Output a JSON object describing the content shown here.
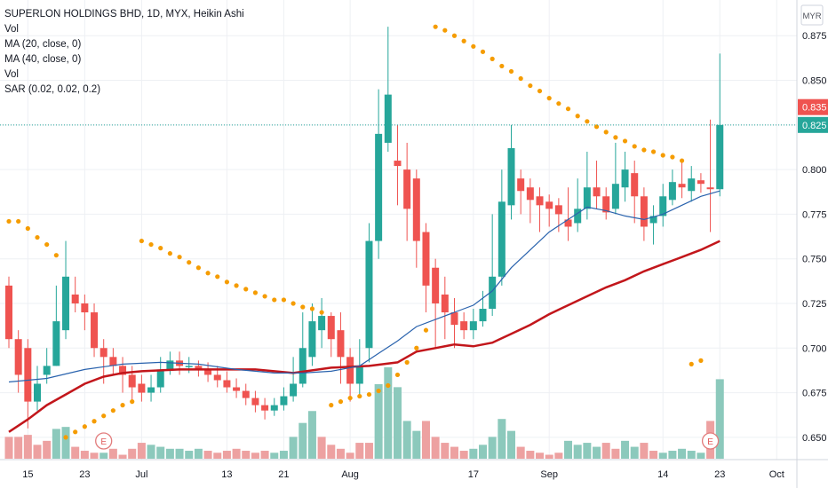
{
  "legend": {
    "title": "SUPERLON HOLDINGS BHD, 1D, MYX, Heikin Ashi",
    "lines": [
      "Vol",
      "MA (20, close, 0)",
      "MA (40, close, 0)",
      "Vol",
      "SAR (0.02, 0.02, 0.2)"
    ]
  },
  "currency": "MYR",
  "price_labels": [
    {
      "text": "0.835",
      "value": 0.835,
      "color": "#ef5350"
    },
    {
      "text": "0.825",
      "value": 0.825,
      "color": "#26a69a"
    }
  ],
  "chart_data": {
    "type": "candlestick",
    "y_range": [
      0.6375,
      0.895
    ],
    "y_ticks": [
      0.65,
      0.675,
      0.7,
      0.725,
      0.75,
      0.775,
      0.8,
      0.825,
      0.85,
      0.875
    ],
    "y_tick_labels": [
      "0.650",
      "0.675",
      "0.700",
      "0.725",
      "0.750",
      "0.775",
      "0.800",
      "0.825",
      "0.850",
      "0.875"
    ],
    "x_ticks": [
      {
        "label": "15",
        "index": 2
      },
      {
        "label": "23",
        "index": 8
      },
      {
        "label": "Jul",
        "index": 14
      },
      {
        "label": "13",
        "index": 23
      },
      {
        "label": "21",
        "index": 29
      },
      {
        "label": "Aug",
        "index": 36
      },
      {
        "label": "17",
        "index": 49
      },
      {
        "label": "Sep",
        "index": 57
      },
      {
        "label": "14",
        "index": 69
      },
      {
        "label": "23",
        "index": 75
      },
      {
        "label": "Oct",
        "index": 81
      }
    ],
    "candles": [
      [
        0.735,
        0.705,
        0.74,
        0.7
      ],
      [
        0.705,
        0.685,
        0.71,
        0.675
      ],
      [
        0.7,
        0.67,
        0.705,
        0.655
      ],
      [
        0.67,
        0.68,
        0.69,
        0.665
      ],
      [
        0.685,
        0.69,
        0.7,
        0.68
      ],
      [
        0.69,
        0.715,
        0.735,
        0.69
      ],
      [
        0.71,
        0.74,
        0.76,
        0.705
      ],
      [
        0.73,
        0.725,
        0.74,
        0.72
      ],
      [
        0.725,
        0.72,
        0.73,
        0.71
      ],
      [
        0.72,
        0.7,
        0.725,
        0.695
      ],
      [
        0.7,
        0.695,
        0.705,
        0.68
      ],
      [
        0.695,
        0.69,
        0.7,
        0.685
      ],
      [
        0.69,
        0.685,
        0.695,
        0.675
      ],
      [
        0.685,
        0.678,
        0.69,
        0.67
      ],
      [
        0.68,
        0.675,
        0.685,
        0.67
      ],
      [
        0.675,
        0.678,
        0.685,
        0.67
      ],
      [
        0.678,
        0.688,
        0.695,
        0.675
      ],
      [
        0.688,
        0.693,
        0.698,
        0.685
      ],
      [
        0.693,
        0.69,
        0.698,
        0.685
      ],
      [
        0.69,
        0.69,
        0.695,
        0.686
      ],
      [
        0.69,
        0.688,
        0.693,
        0.684
      ],
      [
        0.688,
        0.685,
        0.692,
        0.681
      ],
      [
        0.685,
        0.682,
        0.69,
        0.678
      ],
      [
        0.682,
        0.678,
        0.687,
        0.675
      ],
      [
        0.678,
        0.676,
        0.683,
        0.672
      ],
      [
        0.676,
        0.672,
        0.68,
        0.668
      ],
      [
        0.672,
        0.668,
        0.676,
        0.664
      ],
      [
        0.668,
        0.665,
        0.672,
        0.66
      ],
      [
        0.665,
        0.668,
        0.672,
        0.662
      ],
      [
        0.668,
        0.673,
        0.678,
        0.665
      ],
      [
        0.673,
        0.68,
        0.695,
        0.67
      ],
      [
        0.68,
        0.7,
        0.72,
        0.678
      ],
      [
        0.695,
        0.715,
        0.725,
        0.69
      ],
      [
        0.71,
        0.718,
        0.728,
        0.7
      ],
      [
        0.718,
        0.705,
        0.72,
        0.695
      ],
      [
        0.71,
        0.695,
        0.72,
        0.68
      ],
      [
        0.695,
        0.68,
        0.7,
        0.67
      ],
      [
        0.68,
        0.69,
        0.705,
        0.672
      ],
      [
        0.7,
        0.76,
        0.77,
        0.692
      ],
      [
        0.76,
        0.82,
        0.845,
        0.75
      ],
      [
        0.815,
        0.842,
        0.88,
        0.81
      ],
      [
        0.805,
        0.802,
        0.825,
        0.78
      ],
      [
        0.8,
        0.778,
        0.815,
        0.76
      ],
      [
        0.795,
        0.76,
        0.8,
        0.745
      ],
      [
        0.765,
        0.735,
        0.77,
        0.72
      ],
      [
        0.745,
        0.725,
        0.75,
        0.7
      ],
      [
        0.73,
        0.72,
        0.74,
        0.705
      ],
      [
        0.72,
        0.713,
        0.728,
        0.7
      ],
      [
        0.715,
        0.71,
        0.72,
        0.705
      ],
      [
        0.71,
        0.715,
        0.722,
        0.705
      ],
      [
        0.715,
        0.722,
        0.732,
        0.712
      ],
      [
        0.722,
        0.74,
        0.775,
        0.718
      ],
      [
        0.74,
        0.782,
        0.8,
        0.735
      ],
      [
        0.78,
        0.812,
        0.825,
        0.772
      ],
      [
        0.795,
        0.788,
        0.8,
        0.775
      ],
      [
        0.79,
        0.783,
        0.795,
        0.77
      ],
      [
        0.785,
        0.78,
        0.79,
        0.765
      ],
      [
        0.782,
        0.778,
        0.786,
        0.768
      ],
      [
        0.78,
        0.775,
        0.784,
        0.765
      ],
      [
        0.772,
        0.768,
        0.79,
        0.76
      ],
      [
        0.77,
        0.778,
        0.795,
        0.765
      ],
      [
        0.778,
        0.79,
        0.81,
        0.772
      ],
      [
        0.79,
        0.785,
        0.805,
        0.778
      ],
      [
        0.785,
        0.776,
        0.79,
        0.772
      ],
      [
        0.778,
        0.792,
        0.815,
        0.775
      ],
      [
        0.79,
        0.8,
        0.81,
        0.782
      ],
      [
        0.798,
        0.785,
        0.805,
        0.77
      ],
      [
        0.785,
        0.768,
        0.79,
        0.76
      ],
      [
        0.77,
        0.774,
        0.78,
        0.758
      ],
      [
        0.774,
        0.785,
        0.792,
        0.768
      ],
      [
        0.783,
        0.793,
        0.8,
        0.78
      ],
      [
        0.792,
        0.79,
        0.805,
        0.784
      ],
      [
        0.788,
        0.795,
        0.802,
        0.782
      ],
      [
        0.794,
        0.792,
        0.798,
        0.787
      ],
      [
        0.79,
        0.789,
        0.828,
        0.765
      ],
      [
        0.789,
        0.825,
        0.865,
        0.785
      ]
    ],
    "ma20": [
      [
        0,
        0.681
      ],
      [
        4,
        0.683
      ],
      [
        8,
        0.688
      ],
      [
        12,
        0.691
      ],
      [
        16,
        0.692
      ],
      [
        20,
        0.691
      ],
      [
        24,
        0.688
      ],
      [
        28,
        0.686
      ],
      [
        31,
        0.686
      ],
      [
        34,
        0.687
      ],
      [
        37,
        0.69
      ],
      [
        39,
        0.697
      ],
      [
        41,
        0.704
      ],
      [
        43,
        0.712
      ],
      [
        45,
        0.716
      ],
      [
        47,
        0.72
      ],
      [
        49,
        0.724
      ],
      [
        51,
        0.732
      ],
      [
        53,
        0.745
      ],
      [
        55,
        0.755
      ],
      [
        57,
        0.765
      ],
      [
        59,
        0.772
      ],
      [
        61,
        0.779
      ],
      [
        63,
        0.777
      ],
      [
        65,
        0.774
      ],
      [
        67,
        0.772
      ],
      [
        69,
        0.775
      ],
      [
        71,
        0.78
      ],
      [
        73,
        0.785
      ],
      [
        75,
        0.788
      ]
    ],
    "ma40": [
      [
        0,
        0.653
      ],
      [
        2,
        0.66
      ],
      [
        4,
        0.668
      ],
      [
        6,
        0.674
      ],
      [
        8,
        0.68
      ],
      [
        10,
        0.684
      ],
      [
        12,
        0.686
      ],
      [
        14,
        0.687
      ],
      [
        18,
        0.688
      ],
      [
        22,
        0.688
      ],
      [
        26,
        0.688
      ],
      [
        30,
        0.686
      ],
      [
        34,
        0.689
      ],
      [
        38,
        0.69
      ],
      [
        41,
        0.692
      ],
      [
        43,
        0.698
      ],
      [
        45,
        0.7
      ],
      [
        47,
        0.702
      ],
      [
        49,
        0.701
      ],
      [
        51,
        0.703
      ],
      [
        53,
        0.708
      ],
      [
        55,
        0.713
      ],
      [
        57,
        0.719
      ],
      [
        59,
        0.724
      ],
      [
        61,
        0.729
      ],
      [
        63,
        0.734
      ],
      [
        65,
        0.738
      ],
      [
        67,
        0.743
      ],
      [
        69,
        0.747
      ],
      [
        71,
        0.751
      ],
      [
        73,
        0.755
      ],
      [
        75,
        0.76
      ]
    ],
    "sar": [
      [
        0,
        0.771
      ],
      [
        1,
        0.771
      ],
      [
        2,
        0.767
      ],
      [
        3,
        0.762
      ],
      [
        4,
        0.758
      ],
      [
        5,
        0.752
      ],
      [
        6,
        0.65
      ],
      [
        7,
        0.653
      ],
      [
        8,
        0.656
      ],
      [
        9,
        0.659
      ],
      [
        10,
        0.662
      ],
      [
        11,
        0.665
      ],
      [
        12,
        0.668
      ],
      [
        13,
        0.67
      ],
      [
        14,
        0.76
      ],
      [
        15,
        0.758
      ],
      [
        16,
        0.756
      ],
      [
        17,
        0.753
      ],
      [
        18,
        0.751
      ],
      [
        19,
        0.748
      ],
      [
        20,
        0.745
      ],
      [
        21,
        0.742
      ],
      [
        22,
        0.74
      ],
      [
        23,
        0.737
      ],
      [
        24,
        0.735
      ],
      [
        25,
        0.733
      ],
      [
        26,
        0.731
      ],
      [
        27,
        0.729
      ],
      [
        28,
        0.727
      ],
      [
        29,
        0.727
      ],
      [
        30,
        0.725
      ],
      [
        31,
        0.723
      ],
      [
        32,
        0.722
      ],
      [
        33,
        0.72
      ],
      [
        34,
        0.668
      ],
      [
        35,
        0.67
      ],
      [
        36,
        0.672
      ],
      [
        37,
        0.673
      ],
      [
        38,
        0.674
      ],
      [
        39,
        0.676
      ],
      [
        40,
        0.679
      ],
      [
        41,
        0.685
      ],
      [
        42,
        0.692
      ],
      [
        43,
        0.7
      ],
      [
        44,
        0.71
      ],
      [
        45,
        0.88
      ],
      [
        46,
        0.878
      ],
      [
        47,
        0.875
      ],
      [
        48,
        0.872
      ],
      [
        49,
        0.869
      ],
      [
        50,
        0.866
      ],
      [
        51,
        0.862
      ],
      [
        52,
        0.858
      ],
      [
        53,
        0.855
      ],
      [
        54,
        0.851
      ],
      [
        55,
        0.847
      ],
      [
        56,
        0.844
      ],
      [
        57,
        0.84
      ],
      [
        58,
        0.837
      ],
      [
        59,
        0.834
      ],
      [
        60,
        0.83
      ],
      [
        61,
        0.827
      ],
      [
        62,
        0.824
      ],
      [
        63,
        0.821
      ],
      [
        64,
        0.818
      ],
      [
        65,
        0.816
      ],
      [
        66,
        0.813
      ],
      [
        67,
        0.811
      ],
      [
        68,
        0.81
      ],
      [
        69,
        0.808
      ],
      [
        70,
        0.807
      ],
      [
        71,
        0.805
      ],
      [
        72,
        0.691
      ],
      [
        73,
        0.693
      ]
    ],
    "volume": [
      [
        22,
        0
      ],
      [
        22,
        0
      ],
      [
        24,
        0
      ],
      [
        14,
        0
      ],
      [
        18,
        0
      ],
      [
        30,
        1
      ],
      [
        32,
        1
      ],
      [
        12,
        0
      ],
      [
        8,
        0
      ],
      [
        6,
        0
      ],
      [
        6,
        1
      ],
      [
        10,
        0
      ],
      [
        4,
        0
      ],
      [
        10,
        0
      ],
      [
        16,
        0
      ],
      [
        14,
        1
      ],
      [
        12,
        1
      ],
      [
        10,
        1
      ],
      [
        10,
        1
      ],
      [
        8,
        1
      ],
      [
        10,
        1
      ],
      [
        8,
        0
      ],
      [
        6,
        0
      ],
      [
        8,
        0
      ],
      [
        10,
        0
      ],
      [
        8,
        0
      ],
      [
        6,
        0
      ],
      [
        8,
        0
      ],
      [
        6,
        1
      ],
      [
        8,
        1
      ],
      [
        22,
        1
      ],
      [
        36,
        1
      ],
      [
        48,
        1
      ],
      [
        22,
        0
      ],
      [
        14,
        0
      ],
      [
        10,
        0
      ],
      [
        6,
        0
      ],
      [
        16,
        0
      ],
      [
        16,
        0
      ],
      [
        75,
        1
      ],
      [
        92,
        1
      ],
      [
        72,
        1
      ],
      [
        38,
        1
      ],
      [
        28,
        1
      ],
      [
        38,
        0
      ],
      [
        22,
        0
      ],
      [
        16,
        0
      ],
      [
        12,
        0
      ],
      [
        8,
        0
      ],
      [
        10,
        1
      ],
      [
        14,
        1
      ],
      [
        22,
        1
      ],
      [
        40,
        1
      ],
      [
        28,
        1
      ],
      [
        12,
        0
      ],
      [
        8,
        0
      ],
      [
        6,
        0
      ],
      [
        4,
        0
      ],
      [
        6,
        0
      ],
      [
        18,
        1
      ],
      [
        14,
        1
      ],
      [
        16,
        1
      ],
      [
        12,
        1
      ],
      [
        16,
        0
      ],
      [
        10,
        0
      ],
      [
        18,
        1
      ],
      [
        12,
        1
      ],
      [
        16,
        0
      ],
      [
        8,
        0
      ],
      [
        6,
        1
      ],
      [
        8,
        1
      ],
      [
        10,
        1
      ],
      [
        8,
        1
      ],
      [
        6,
        1
      ],
      [
        38,
        0
      ],
      [
        80,
        1
      ]
    ],
    "earnings_markers": [
      {
        "label": "E",
        "index": 10
      },
      {
        "label": "E",
        "index": 74
      }
    ]
  },
  "colors": {
    "up": "#26a69a",
    "down": "#ef5350",
    "vol_up": "#8cc9bc",
    "vol_down": "#eda1a1",
    "ma20": "#2962ad",
    "ma40": "#c2161b",
    "sar": "#f59c00",
    "grid": "#eef0f4",
    "axis_text": "#131722"
  }
}
